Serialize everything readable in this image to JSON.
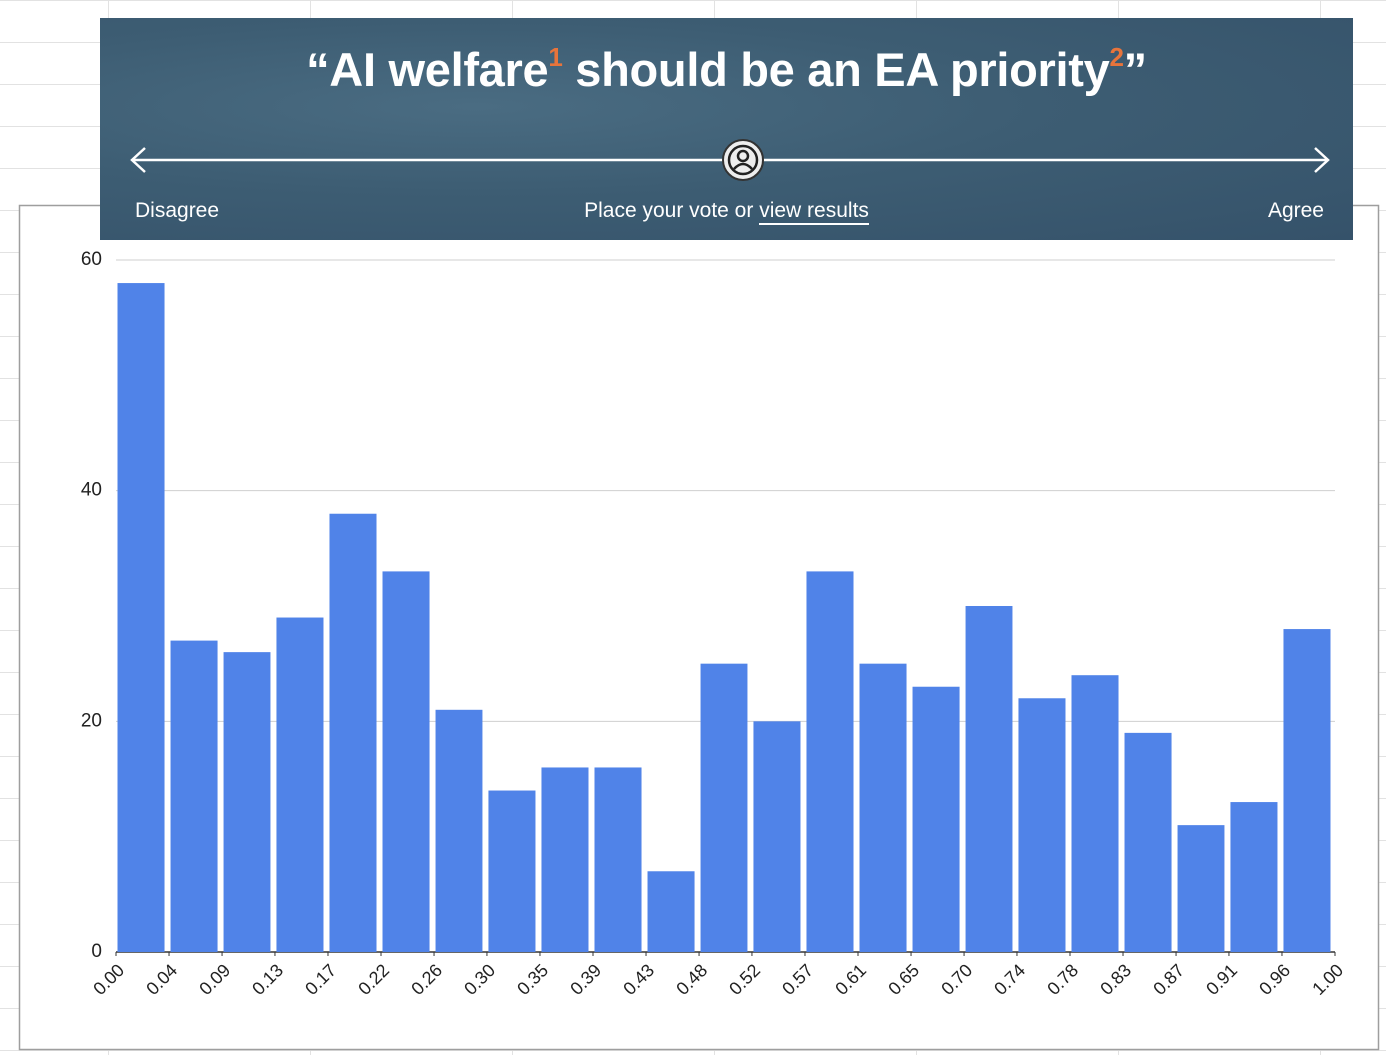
{
  "banner": {
    "title_open": "“AI welfare",
    "footnote_1": "1",
    "title_middle": " should be an EA priority",
    "footnote_2": "2",
    "title_close": "”",
    "left_label": "Disagree",
    "prompt": "Place your vote or",
    "link": "view results",
    "right_label": "Agree"
  },
  "chart_data": {
    "type": "histogram",
    "color": "#5083e8",
    "grid": true,
    "bins": [
      0,
      0.0435,
      0.087,
      0.1304,
      0.1739,
      0.2174,
      0.2609,
      0.3043,
      0.3478,
      0.3913,
      0.4348,
      0.4783,
      0.5217,
      0.5652,
      0.6087,
      0.6522,
      0.6957,
      0.7391,
      0.7826,
      0.8261,
      0.8696,
      0.913,
      0.9565,
      1
    ],
    "values": [
      58,
      27,
      26,
      29,
      38,
      33,
      21,
      14,
      16,
      16,
      7,
      25,
      20,
      33,
      25,
      23,
      30,
      22,
      24,
      19,
      11,
      13,
      28
    ],
    "xlim": [
      0,
      1
    ],
    "xticks": [
      {
        "value": 0,
        "label": "0.00"
      },
      {
        "value": 0.0435,
        "label": "0.04"
      },
      {
        "value": 0.087,
        "label": "0.09"
      },
      {
        "value": 0.1304,
        "label": "0.13"
      },
      {
        "value": 0.1739,
        "label": "0.17"
      },
      {
        "value": 0.2174,
        "label": "0.22"
      },
      {
        "value": 0.2609,
        "label": "0.26"
      },
      {
        "value": 0.3043,
        "label": "0.30"
      },
      {
        "value": 0.3478,
        "label": "0.35"
      },
      {
        "value": 0.3913,
        "label": "0.39"
      },
      {
        "value": 0.4348,
        "label": "0.43"
      },
      {
        "value": 0.4783,
        "label": "0.48"
      },
      {
        "value": 0.5217,
        "label": "0.52"
      },
      {
        "value": 0.5652,
        "label": "0.57"
      },
      {
        "value": 0.6087,
        "label": "0.61"
      },
      {
        "value": 0.6522,
        "label": "0.65"
      },
      {
        "value": 0.6957,
        "label": "0.70"
      },
      {
        "value": 0.7391,
        "label": "0.74"
      },
      {
        "value": 0.7826,
        "label": "0.78"
      },
      {
        "value": 0.8261,
        "label": "0.83"
      },
      {
        "value": 0.8696,
        "label": "0.87"
      },
      {
        "value": 0.913,
        "label": "0.91"
      },
      {
        "value": 0.9565,
        "label": "0.96"
      },
      {
        "value": 1,
        "label": "1.00"
      }
    ],
    "ylim": [
      0,
      60
    ],
    "yticks": [
      0,
      20,
      40,
      60
    ]
  }
}
